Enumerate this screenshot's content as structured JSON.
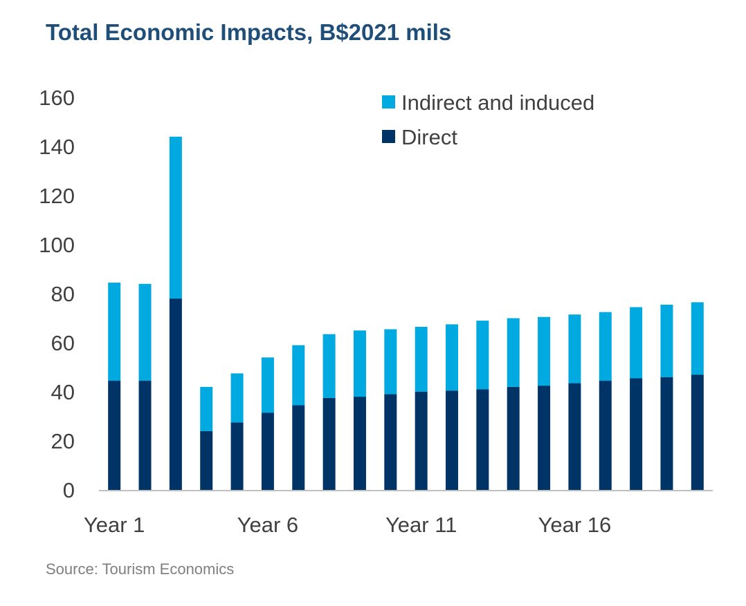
{
  "title": "Total Economic Impacts, B$2021 mils",
  "source": "Source: Tourism Economics",
  "colors": {
    "direct": "#003366",
    "indirect": "#00a9e0",
    "axis": "#bfbfbf"
  },
  "chart_data": {
    "type": "bar",
    "stacked": true,
    "title": "Total Economic Impacts, B$2021 mils",
    "xlabel": "",
    "ylabel": "",
    "ylim": [
      0,
      160
    ],
    "yticks": [
      0,
      20,
      40,
      60,
      80,
      100,
      120,
      140,
      160
    ],
    "x_tick_labels": [
      {
        "index": 0,
        "label": "Year 1"
      },
      {
        "index": 5,
        "label": "Year 6"
      },
      {
        "index": 10,
        "label": "Year 11"
      },
      {
        "index": 15,
        "label": "Year 16"
      }
    ],
    "categories": [
      "Year 1",
      "Year 2",
      "Year 3",
      "Year 4",
      "Year 5",
      "Year 6",
      "Year 7",
      "Year 8",
      "Year 9",
      "Year 10",
      "Year 11",
      "Year 12",
      "Year 13",
      "Year 14",
      "Year 15",
      "Year 16",
      "Year 17",
      "Year 18",
      "Year 19",
      "Year 20"
    ],
    "series": [
      {
        "name": "Direct",
        "color": "#003366",
        "values": [
          44.5,
          44.5,
          78,
          24,
          27.5,
          31.5,
          34.5,
          37.5,
          38,
          39,
          40,
          40.5,
          41,
          42,
          42.5,
          43.5,
          44.5,
          45.5,
          46,
          47
        ]
      },
      {
        "name": "Indirect and induced",
        "color": "#00a9e0",
        "values": [
          40,
          39.5,
          66,
          18,
          20,
          22.5,
          24.5,
          26,
          27,
          26.5,
          26.5,
          27,
          28,
          28,
          28,
          28,
          28,
          29,
          29.5,
          29.5
        ]
      }
    ],
    "legend": {
      "position": "top-right",
      "items": [
        "Indirect and induced",
        "Direct"
      ]
    },
    "grid": false
  }
}
